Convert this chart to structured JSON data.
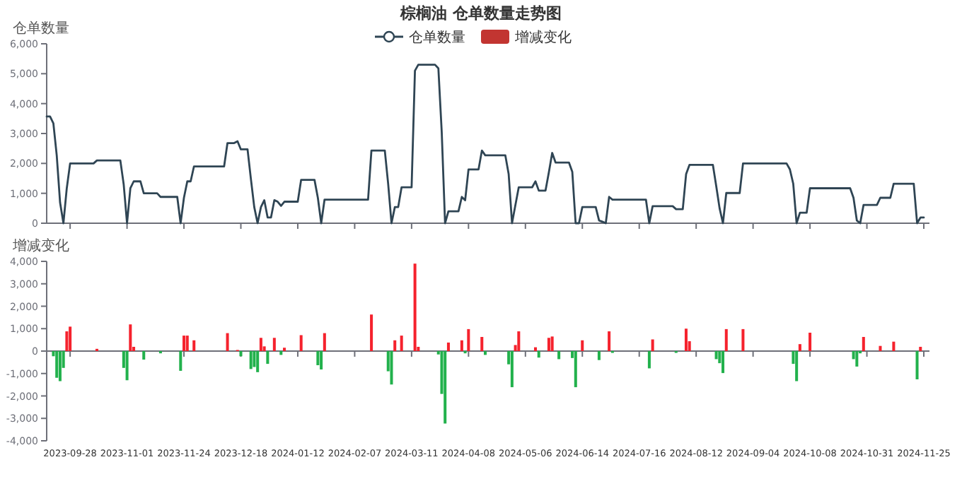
{
  "chart_data": [
    {
      "type": "line",
      "title": "棕榈油 仓单数量走势图",
      "ylabel": "仓单数量",
      "legend": "top",
      "tick_labels": "y",
      "categories": [
        null,
        null,
        null,
        null,
        null,
        null,
        null,
        "2023-09-28",
        null,
        null,
        null,
        null,
        null,
        null,
        null,
        null,
        null,
        null,
        null,
        null,
        null,
        null,
        null,
        null,
        "2023-11-01",
        null,
        null,
        null,
        null,
        null,
        null,
        null,
        null,
        null,
        null,
        null,
        null,
        null,
        null,
        null,
        null,
        "2023-11-24",
        null,
        null,
        null,
        null,
        null,
        null,
        null,
        null,
        null,
        null,
        null,
        null,
        null,
        null,
        null,
        null,
        "2023-12-18",
        null,
        null,
        null,
        null,
        null,
        null,
        null,
        null,
        null,
        null,
        null,
        null,
        null,
        null,
        null,
        null,
        "2024-01-12",
        null,
        null,
        null,
        null,
        null,
        null,
        null,
        null,
        null,
        null,
        null,
        null,
        null,
        null,
        null,
        null,
        "2024-02-07",
        null,
        null,
        null,
        null,
        null,
        null,
        null,
        null,
        null,
        null,
        null,
        null,
        null,
        null,
        null,
        null,
        "2024-03-11",
        null,
        null,
        null,
        null,
        null,
        null,
        null,
        null,
        null,
        null,
        null,
        null,
        null,
        null,
        null,
        null,
        "2024-04-08",
        null,
        null,
        null,
        null,
        null,
        null,
        null,
        null,
        null,
        null,
        null,
        null,
        null,
        null,
        null,
        null,
        "2024-05-06",
        null,
        null,
        null,
        null,
        null,
        null,
        null,
        null,
        null,
        null,
        null,
        null,
        null,
        null,
        null,
        null,
        "2024-06-14",
        null,
        null,
        null,
        null,
        null,
        null,
        null,
        null,
        null,
        null,
        null,
        null,
        null,
        null,
        null,
        null,
        "2024-07-16",
        null,
        null,
        null,
        null,
        null,
        null,
        null,
        null,
        null,
        null,
        null,
        null,
        null,
        null,
        null,
        null,
        "2024-08-12",
        null,
        null,
        null,
        null,
        null,
        null,
        null,
        null,
        null,
        null,
        null,
        null,
        null,
        null,
        null,
        null,
        "2024-09-04",
        null,
        null,
        null,
        null,
        null,
        null,
        null,
        null,
        null,
        null,
        null,
        null,
        null,
        null,
        null,
        null,
        "2024-10-08",
        null,
        null,
        null,
        null,
        null,
        null,
        null,
        null,
        null,
        null,
        null,
        null,
        null,
        null,
        null,
        null,
        "2024-10-31",
        null,
        null,
        null,
        null,
        null,
        null,
        null,
        null,
        null,
        null,
        null,
        null,
        null,
        null,
        null,
        null,
        "2024-11-25"
      ],
      "ylim": [
        0,
        6000
      ],
      "yticks": [
        0,
        {
          "value": 1000,
          "label": "1,000"
        },
        {
          "value": 2000,
          "label": "2,000"
        },
        {
          "value": 3000,
          "label": "3,000"
        },
        {
          "value": 4000,
          "label": "4,000"
        },
        {
          "value": 5000,
          "label": "5,000"
        },
        {
          "value": 6000,
          "label": "6,000"
        }
      ],
      "series": [
        {
          "name": "仓单数量",
          "color": "#2f4554",
          "values": [
            3570,
            3570,
            3340,
            2270,
            690,
            0,
            1170,
            2000,
            2000,
            2000,
            2000,
            2000,
            2000,
            2000,
            2000,
            2100,
            2100,
            2100,
            2100,
            2100,
            2100,
            2100,
            2100,
            1300,
            0,
            1170,
            1400,
            1400,
            1400,
            1000,
            1000,
            1000,
            1000,
            1000,
            880,
            880,
            880,
            880,
            880,
            880,
            0,
            850,
            1400,
            1400,
            1900,
            1900,
            1900,
            1900,
            1900,
            1900,
            1900,
            1900,
            1900,
            1900,
            2680,
            2680,
            2680,
            2740,
            2470,
            2470,
            2470,
            1480,
            540,
            0,
            540,
            770,
            190,
            190,
            770,
            720,
            580,
            720,
            720,
            720,
            720,
            720,
            1450,
            1450,
            1450,
            1450,
            1450,
            850,
            0,
            790,
            790,
            790,
            790,
            790,
            790,
            790,
            790,
            790,
            790,
            790,
            790,
            790,
            790,
            2430,
            2430,
            2430,
            2430,
            2430,
            1320,
            0,
            540,
            540,
            1200,
            1200,
            1200,
            1200,
            5100,
            5300,
            5300,
            5300,
            5300,
            5300,
            5300,
            5180,
            3050,
            0,
            400,
            400,
            400,
            400,
            880,
            770,
            1800,
            1800,
            1800,
            1800,
            2430,
            2270,
            2270,
            2270,
            2270,
            2270,
            2270,
            2270,
            1640,
            0,
            600,
            1200,
            1200,
            1200,
            1200,
            1200,
            1400,
            1090,
            1090,
            1090,
            1700,
            2350,
            2030,
            2030,
            2030,
            2030,
            2030,
            1720,
            0,
            0,
            540,
            540,
            540,
            540,
            540,
            90,
            50,
            0,
            880,
            790,
            790,
            790,
            790,
            790,
            790,
            790,
            790,
            790,
            790,
            790,
            0,
            570,
            570,
            570,
            570,
            570,
            570,
            570,
            470,
            470,
            470,
            1640,
            1950,
            1950,
            1950,
            1950,
            1950,
            1950,
            1950,
            1950,
            1240,
            500,
            0,
            1010,
            1010,
            1010,
            1010,
            1010,
            2000,
            2000,
            2000,
            2000,
            2000,
            2000,
            2000,
            2000,
            2000,
            2000,
            2000,
            2000,
            2000,
            2000,
            1800,
            1320,
            0,
            350,
            350,
            350,
            1170,
            1170,
            1170,
            1170,
            1170,
            1170,
            1170,
            1170,
            1170,
            1170,
            1170,
            1170,
            1170,
            850,
            90,
            0,
            610,
            610,
            610,
            610,
            610,
            850,
            850,
            850,
            850,
            1320,
            1320,
            1320,
            1320,
            1320,
            1320,
            1320,
            0,
            190,
            190
          ]
        }
      ]
    },
    {
      "type": "bar",
      "ylabel": "增减变化",
      "legend": "top",
      "categories": [
        null,
        null,
        null,
        null,
        null,
        null,
        null,
        "2023-09-28",
        null,
        null,
        null,
        null,
        null,
        null,
        null,
        null,
        null,
        null,
        null,
        null,
        null,
        null,
        null,
        null,
        "2023-11-01",
        null,
        null,
        null,
        null,
        null,
        null,
        null,
        null,
        null,
        null,
        null,
        null,
        null,
        null,
        null,
        null,
        "2023-11-24",
        null,
        null,
        null,
        null,
        null,
        null,
        null,
        null,
        null,
        null,
        null,
        null,
        null,
        null,
        null,
        null,
        "2023-12-18",
        null,
        null,
        null,
        null,
        null,
        null,
        null,
        null,
        null,
        null,
        null,
        null,
        null,
        null,
        null,
        null,
        "2024-01-12",
        null,
        null,
        null,
        null,
        null,
        null,
        null,
        null,
        null,
        null,
        null,
        null,
        null,
        null,
        null,
        null,
        "2024-02-07",
        null,
        null,
        null,
        null,
        null,
        null,
        null,
        null,
        null,
        null,
        null,
        null,
        null,
        null,
        null,
        null,
        "2024-03-11",
        null,
        null,
        null,
        null,
        null,
        null,
        null,
        null,
        null,
        null,
        null,
        null,
        null,
        null,
        null,
        null,
        "2024-04-08",
        null,
        null,
        null,
        null,
        null,
        null,
        null,
        null,
        null,
        null,
        null,
        null,
        null,
        null,
        null,
        null,
        "2024-05-06",
        null,
        null,
        null,
        null,
        null,
        null,
        null,
        null,
        null,
        null,
        null,
        null,
        null,
        null,
        null,
        null,
        "2024-06-14",
        null,
        null,
        null,
        null,
        null,
        null,
        null,
        null,
        null,
        null,
        null,
        null,
        null,
        null,
        null,
        null,
        "2024-07-16",
        null,
        null,
        null,
        null,
        null,
        null,
        null,
        null,
        null,
        null,
        null,
        null,
        null,
        null,
        null,
        null,
        "2024-08-12",
        null,
        null,
        null,
        null,
        null,
        null,
        null,
        null,
        null,
        null,
        null,
        null,
        null,
        null,
        null,
        null,
        "2024-09-04",
        null,
        null,
        null,
        null,
        null,
        null,
        null,
        null,
        null,
        null,
        null,
        null,
        null,
        null,
        null,
        null,
        "2024-10-08",
        null,
        null,
        null,
        null,
        null,
        null,
        null,
        null,
        null,
        null,
        null,
        null,
        null,
        null,
        null,
        null,
        "2024-10-31",
        null,
        null,
        null,
        null,
        null,
        null,
        null,
        null,
        null,
        null,
        null,
        null,
        null,
        null,
        null,
        null,
        "2024-11-25"
      ],
      "ylim": [
        -4000,
        4000
      ],
      "yticks": [
        {
          "value": -4000,
          "label": "-4,000"
        },
        {
          "value": -3000,
          "label": "-3,000"
        },
        {
          "value": -2000,
          "label": "-2,000"
        },
        {
          "value": -1000,
          "label": "-1,000"
        },
        0,
        {
          "value": 1000,
          "label": "1,000"
        },
        {
          "value": 2000,
          "label": "2,000"
        },
        {
          "value": 3000,
          "label": "3,000"
        },
        {
          "value": 4000,
          "label": "4,000"
        }
      ],
      "series": [
        {
          "name": "增减变化",
          "color": "#c23531",
          "values": [
            null,
            null,
            -230,
            -1190,
            -1340,
            -750,
            880,
            1090,
            null,
            null,
            null,
            null,
            null,
            null,
            null,
            100,
            null,
            null,
            null,
            null,
            null,
            null,
            null,
            -750,
            -1300,
            1190,
            190,
            null,
            null,
            -380,
            null,
            null,
            null,
            null,
            -100,
            null,
            null,
            null,
            null,
            null,
            -880,
            690,
            690,
            null,
            480,
            null,
            null,
            null,
            null,
            null,
            null,
            null,
            null,
            null,
            800,
            null,
            null,
            50,
            -230,
            null,
            null,
            -800,
            -710,
            -940,
            590,
            210,
            -570,
            null,
            590,
            null,
            -170,
            150,
            null,
            null,
            null,
            null,
            710,
            null,
            null,
            null,
            null,
            -630,
            -820,
            800,
            null,
            null,
            null,
            null,
            null,
            null,
            null,
            null,
            null,
            null,
            null,
            null,
            null,
            1630,
            null,
            null,
            null,
            null,
            -900,
            -1490,
            480,
            null,
            690,
            null,
            null,
            null,
            3900,
            190,
            null,
            null,
            null,
            null,
            null,
            -150,
            -1910,
            -3230,
            380,
            null,
            null,
            null,
            480,
            -100,
            980,
            null,
            null,
            null,
            630,
            -170,
            null,
            null,
            null,
            null,
            null,
            null,
            -590,
            -1610,
            270,
            880,
            null,
            null,
            null,
            null,
            170,
            -290,
            null,
            null,
            590,
            650,
            null,
            -360,
            null,
            null,
            null,
            -310,
            -1610,
            null,
            480,
            null,
            null,
            null,
            null,
            -400,
            null,
            null,
            880,
            -80,
            null,
            null,
            null,
            null,
            null,
            null,
            null,
            null,
            null,
            null,
            -770,
            520,
            null,
            null,
            null,
            null,
            null,
            null,
            -80,
            null,
            null,
            1000,
            440,
            null,
            null,
            null,
            null,
            null,
            null,
            null,
            -360,
            -540,
            -980,
            980,
            null,
            null,
            null,
            null,
            980,
            null,
            null,
            null,
            null,
            null,
            null,
            null,
            null,
            null,
            null,
            null,
            null,
            null,
            null,
            -570,
            -1340,
            310,
            null,
            null,
            820,
            null,
            null,
            null,
            null,
            null,
            null,
            null,
            null,
            null,
            null,
            null,
            null,
            -360,
            -690,
            -100,
            630,
            null,
            null,
            null,
            null,
            230,
            null,
            null,
            null,
            420,
            null,
            null,
            null,
            null,
            null,
            null,
            -1260,
            190,
            null
          ],
          "colors": [
            null,
            null,
            "#22b14c",
            "#22b14c",
            "#22b14c",
            "#22b14c",
            "#f5222d",
            "#f5222d",
            null,
            null,
            null,
            null,
            null,
            null,
            null,
            "#f5222d",
            null,
            null,
            null,
            null,
            null,
            null,
            null,
            "#22b14c",
            "#22b14c",
            "#f5222d",
            "#f5222d",
            null,
            null,
            "#22b14c",
            null,
            null,
            null,
            null,
            "#22b14c",
            null,
            null,
            null,
            null,
            null,
            "#22b14c",
            "#f5222d",
            "#f5222d",
            null,
            "#f5222d",
            null,
            null,
            null,
            null,
            null,
            null,
            null,
            null,
            null,
            "#f5222d",
            null,
            null,
            "#f5222d",
            "#22b14c",
            null,
            null,
            "#22b14c",
            "#22b14c",
            "#22b14c",
            "#f5222d",
            "#f5222d",
            "#22b14c",
            null,
            "#f5222d",
            null,
            "#22b14c",
            "#f5222d",
            null,
            null,
            null,
            null,
            "#f5222d",
            null,
            null,
            null,
            null,
            "#22b14c",
            "#22b14c",
            "#f5222d",
            null,
            null,
            null,
            null,
            null,
            null,
            null,
            null,
            null,
            null,
            null,
            null,
            null,
            "#f5222d",
            null,
            null,
            null,
            null,
            "#22b14c",
            "#22b14c",
            "#f5222d",
            null,
            "#f5222d",
            null,
            null,
            null,
            "#f5222d",
            "#f5222d",
            null,
            null,
            null,
            null,
            null,
            "#22b14c",
            "#22b14c",
            "#22b14c",
            "#f5222d",
            null,
            null,
            null,
            "#f5222d",
            "#22b14c",
            "#f5222d",
            null,
            null,
            null,
            "#f5222d",
            "#22b14c",
            null,
            null,
            null,
            null,
            null,
            null,
            "#22b14c",
            "#22b14c",
            "#f5222d",
            "#f5222d",
            null,
            null,
            null,
            null,
            "#f5222d",
            "#22b14c",
            null,
            null,
            "#f5222d",
            "#f5222d",
            null,
            "#22b14c",
            null,
            null,
            null,
            "#22b14c",
            "#22b14c",
            null,
            "#f5222d",
            null,
            null,
            null,
            null,
            "#22b14c",
            null,
            null,
            "#f5222d",
            "#22b14c",
            null,
            null,
            null,
            null,
            null,
            null,
            null,
            null,
            null,
            null,
            "#22b14c",
            "#f5222d",
            null,
            null,
            null,
            null,
            null,
            null,
            "#22b14c",
            null,
            null,
            "#f5222d",
            "#f5222d",
            null,
            null,
            null,
            null,
            null,
            null,
            null,
            "#22b14c",
            "#22b14c",
            "#22b14c",
            "#f5222d",
            null,
            null,
            null,
            null,
            "#f5222d",
            null,
            null,
            null,
            null,
            null,
            null,
            null,
            null,
            null,
            null,
            null,
            null,
            null,
            null,
            "#22b14c",
            "#22b14c",
            "#f5222d",
            null,
            null,
            "#f5222d",
            null,
            null,
            null,
            null,
            null,
            null,
            null,
            null,
            null,
            null,
            null,
            null,
            "#22b14c",
            "#22b14c",
            "#22b14c",
            "#f5222d",
            null,
            null,
            null,
            null,
            "#f5222d",
            null,
            null,
            null,
            "#f5222d",
            null,
            null,
            null,
            null,
            null,
            null,
            "#22b14c",
            "#f5222d",
            null
          ]
        }
      ]
    }
  ]
}
